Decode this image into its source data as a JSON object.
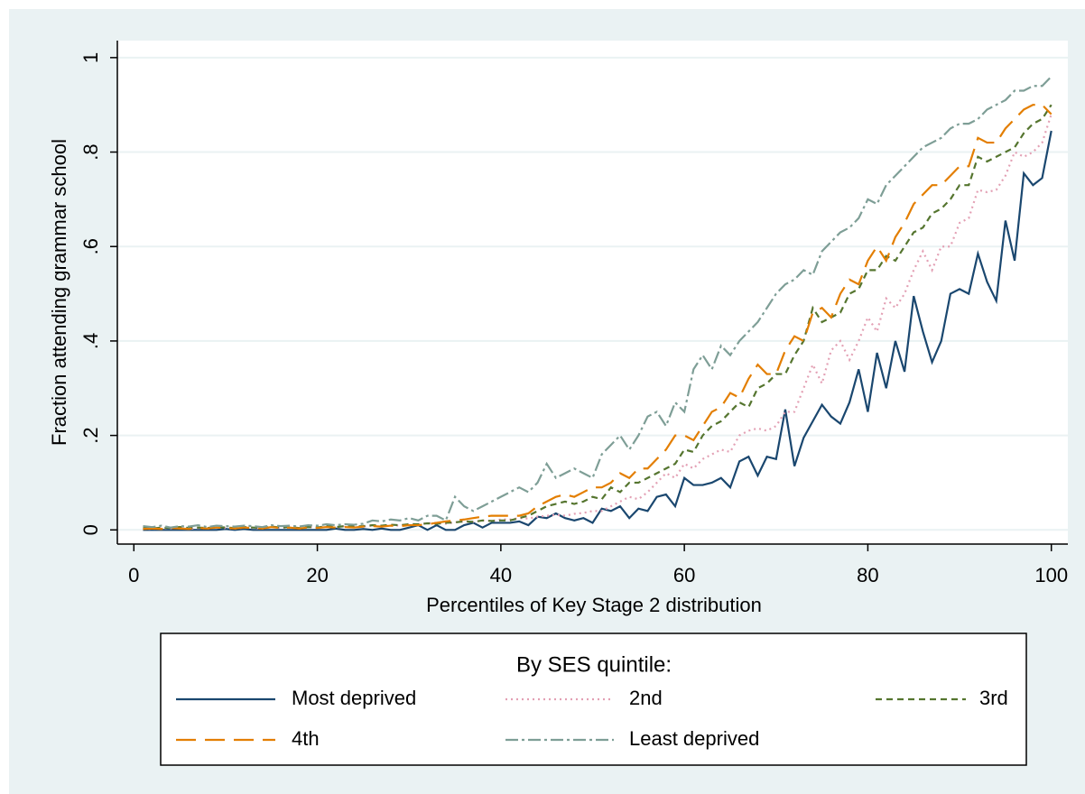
{
  "chart_data": {
    "type": "line",
    "xlabel": "Percentiles of Key Stage 2 distribution",
    "ylabel": "Fraction attending grammar school",
    "legend_title": "By SES quintile:",
    "legend": "bottom",
    "grid": true,
    "xlim": [
      -1.8,
      101.8
    ],
    "ylim": [
      -0.03,
      1.036
    ],
    "xticks": [
      0,
      20,
      40,
      60,
      80,
      100
    ],
    "yticks": [
      0,
      {
        "value": 0.2,
        "label": ".2"
      },
      {
        "value": 0.4,
        "label": ".4"
      },
      {
        "value": 0.6,
        "label": ".6"
      },
      {
        "value": 0.8,
        "label": ".8"
      },
      1
    ],
    "x": [
      1,
      2,
      3,
      4,
      5,
      6,
      7,
      8,
      9,
      10,
      11,
      12,
      13,
      14,
      15,
      16,
      17,
      18,
      19,
      20,
      21,
      22,
      23,
      24,
      25,
      26,
      27,
      28,
      29,
      30,
      31,
      32,
      33,
      34,
      35,
      36,
      37,
      38,
      39,
      40,
      41,
      42,
      43,
      44,
      45,
      46,
      47,
      48,
      49,
      50,
      51,
      52,
      53,
      54,
      55,
      56,
      57,
      58,
      59,
      60,
      61,
      62,
      63,
      64,
      65,
      66,
      67,
      68,
      69,
      70,
      71,
      72,
      73,
      74,
      75,
      76,
      77,
      78,
      79,
      80,
      81,
      82,
      83,
      84,
      85,
      86,
      87,
      88,
      89,
      90,
      91,
      92,
      93,
      94,
      95,
      96,
      97,
      98,
      99,
      100
    ],
    "series": [
      {
        "name": "Most deprived",
        "color": "#1a476f",
        "dash": "none",
        "values": [
          0,
          0,
          0,
          0,
          0,
          0,
          0,
          0,
          0,
          0.002,
          0,
          0.002,
          0,
          0,
          0,
          0,
          0,
          0,
          0,
          0,
          0,
          0.003,
          0,
          0,
          0.002,
          0,
          0.003,
          0,
          0,
          0.005,
          0.01,
          0,
          0.01,
          0,
          0,
          0.01,
          0.015,
          0.005,
          0.015,
          0.015,
          0.015,
          0.018,
          0.01,
          0.028,
          0.025,
          0.035,
          0.025,
          0.02,
          0.025,
          0.015,
          0.045,
          0.04,
          0.05,
          0.025,
          0.045,
          0.04,
          0.07,
          0.075,
          0.05,
          0.11,
          0.095,
          0.095,
          0.1,
          0.11,
          0.09,
          0.145,
          0.155,
          0.115,
          0.155,
          0.15,
          0.255,
          0.135,
          0.195,
          0.23,
          0.265,
          0.24,
          0.225,
          0.27,
          0.34,
          0.25,
          0.375,
          0.3,
          0.4,
          0.335,
          0.495,
          0.42,
          0.355,
          0.4,
          0.5,
          0.51,
          0.5,
          0.585,
          0.525,
          0.485,
          0.655,
          0.57,
          0.755,
          0.73,
          0.745,
          0.845
        ]
      },
      {
        "name": "2nd",
        "color": "#e3a0b4",
        "dash": "2,4",
        "values": [
          0.003,
          0.002,
          0.004,
          0.003,
          0.005,
          0.002,
          0.004,
          0.003,
          0.005,
          0.004,
          0.003,
          0.005,
          0.004,
          0.003,
          0.006,
          0.004,
          0.005,
          0.003,
          0.006,
          0.005,
          0.007,
          0.005,
          0.008,
          0.006,
          0.007,
          0.009,
          0.008,
          0.01,
          0.009,
          0.012,
          0.012,
          0.014,
          0.015,
          0.013,
          0.016,
          0.018,
          0.017,
          0.02,
          0.019,
          0.022,
          0.022,
          0.025,
          0.024,
          0.028,
          0.03,
          0.032,
          0.03,
          0.034,
          0.036,
          0.04,
          0.04,
          0.05,
          0.06,
          0.07,
          0.065,
          0.08,
          0.1,
          0.12,
          0.11,
          0.14,
          0.13,
          0.15,
          0.16,
          0.17,
          0.165,
          0.2,
          0.21,
          0.215,
          0.21,
          0.22,
          0.25,
          0.25,
          0.3,
          0.35,
          0.31,
          0.38,
          0.4,
          0.36,
          0.4,
          0.45,
          0.42,
          0.49,
          0.47,
          0.5,
          0.55,
          0.59,
          0.55,
          0.6,
          0.6,
          0.65,
          0.66,
          0.72,
          0.715,
          0.72,
          0.75,
          0.8,
          0.79,
          0.8,
          0.82,
          0.88
        ]
      },
      {
        "name": "3rd",
        "color": "#55752f",
        "dash": "7,5",
        "values": [
          0.004,
          0.003,
          0.005,
          0.004,
          0.006,
          0.004,
          0.005,
          0.004,
          0.006,
          0.005,
          0.004,
          0.006,
          0.005,
          0.004,
          0.007,
          0.005,
          0.006,
          0.004,
          0.006,
          0.005,
          0.008,
          0.006,
          0.008,
          0.007,
          0.008,
          0.01,
          0.009,
          0.011,
          0.01,
          0.012,
          0.012,
          0.014,
          0.013,
          0.015,
          0.016,
          0.018,
          0.017,
          0.02,
          0.019,
          0.02,
          0.02,
          0.025,
          0.03,
          0.04,
          0.05,
          0.055,
          0.06,
          0.055,
          0.06,
          0.07,
          0.065,
          0.09,
          0.08,
          0.1,
          0.1,
          0.11,
          0.12,
          0.13,
          0.14,
          0.17,
          0.165,
          0.2,
          0.22,
          0.23,
          0.25,
          0.27,
          0.26,
          0.3,
          0.31,
          0.33,
          0.33,
          0.37,
          0.4,
          0.47,
          0.44,
          0.45,
          0.46,
          0.5,
          0.51,
          0.55,
          0.55,
          0.58,
          0.57,
          0.6,
          0.63,
          0.64,
          0.67,
          0.68,
          0.7,
          0.73,
          0.73,
          0.79,
          0.78,
          0.79,
          0.8,
          0.81,
          0.84,
          0.86,
          0.87,
          0.9
        ]
      },
      {
        "name": "4th",
        "color": "#e37e00",
        "dash": "22,10",
        "values": [
          0.002,
          0.003,
          0.002,
          0.004,
          0.003,
          0.002,
          0.004,
          0.003,
          0.005,
          0.004,
          0.003,
          0.005,
          0.004,
          0.003,
          0.006,
          0.004,
          0.005,
          0.003,
          0.005,
          0.004,
          0.006,
          0.005,
          0.006,
          0.005,
          0.007,
          0.008,
          0.007,
          0.009,
          0.008,
          0.01,
          0.01,
          0.012,
          0.015,
          0.018,
          0.02,
          0.022,
          0.025,
          0.028,
          0.03,
          0.03,
          0.03,
          0.03,
          0.035,
          0.05,
          0.06,
          0.07,
          0.075,
          0.07,
          0.08,
          0.09,
          0.09,
          0.1,
          0.12,
          0.11,
          0.13,
          0.13,
          0.15,
          0.17,
          0.2,
          0.2,
          0.19,
          0.22,
          0.25,
          0.26,
          0.29,
          0.28,
          0.32,
          0.35,
          0.33,
          0.33,
          0.38,
          0.41,
          0.4,
          0.46,
          0.47,
          0.45,
          0.5,
          0.53,
          0.52,
          0.57,
          0.6,
          0.57,
          0.62,
          0.65,
          0.69,
          0.71,
          0.73,
          0.73,
          0.75,
          0.77,
          0.77,
          0.83,
          0.82,
          0.82,
          0.85,
          0.87,
          0.89,
          0.9,
          0.9,
          0.88
        ]
      },
      {
        "name": "Least deprived",
        "color": "#7e9e96",
        "dash": "14,4,3,4",
        "values": [
          0.008,
          0.006,
          0.009,
          0.005,
          0.008,
          0.007,
          0.01,
          0.006,
          0.009,
          0.008,
          0.007,
          0.009,
          0.008,
          0.006,
          0.01,
          0.008,
          0.009,
          0.007,
          0.01,
          0.009,
          0.012,
          0.01,
          0.012,
          0.011,
          0.013,
          0.02,
          0.018,
          0.022,
          0.02,
          0.025,
          0.02,
          0.03,
          0.03,
          0.02,
          0.07,
          0.05,
          0.04,
          0.05,
          0.06,
          0.07,
          0.08,
          0.09,
          0.08,
          0.1,
          0.14,
          0.11,
          0.12,
          0.13,
          0.12,
          0.11,
          0.16,
          0.18,
          0.2,
          0.17,
          0.2,
          0.24,
          0.25,
          0.22,
          0.27,
          0.25,
          0.34,
          0.37,
          0.34,
          0.39,
          0.37,
          0.4,
          0.42,
          0.44,
          0.47,
          0.5,
          0.52,
          0.53,
          0.55,
          0.54,
          0.59,
          0.61,
          0.63,
          0.64,
          0.66,
          0.7,
          0.69,
          0.73,
          0.75,
          0.77,
          0.79,
          0.81,
          0.82,
          0.83,
          0.85,
          0.86,
          0.86,
          0.87,
          0.89,
          0.9,
          0.91,
          0.93,
          0.93,
          0.94,
          0.94,
          0.96
        ]
      }
    ]
  }
}
